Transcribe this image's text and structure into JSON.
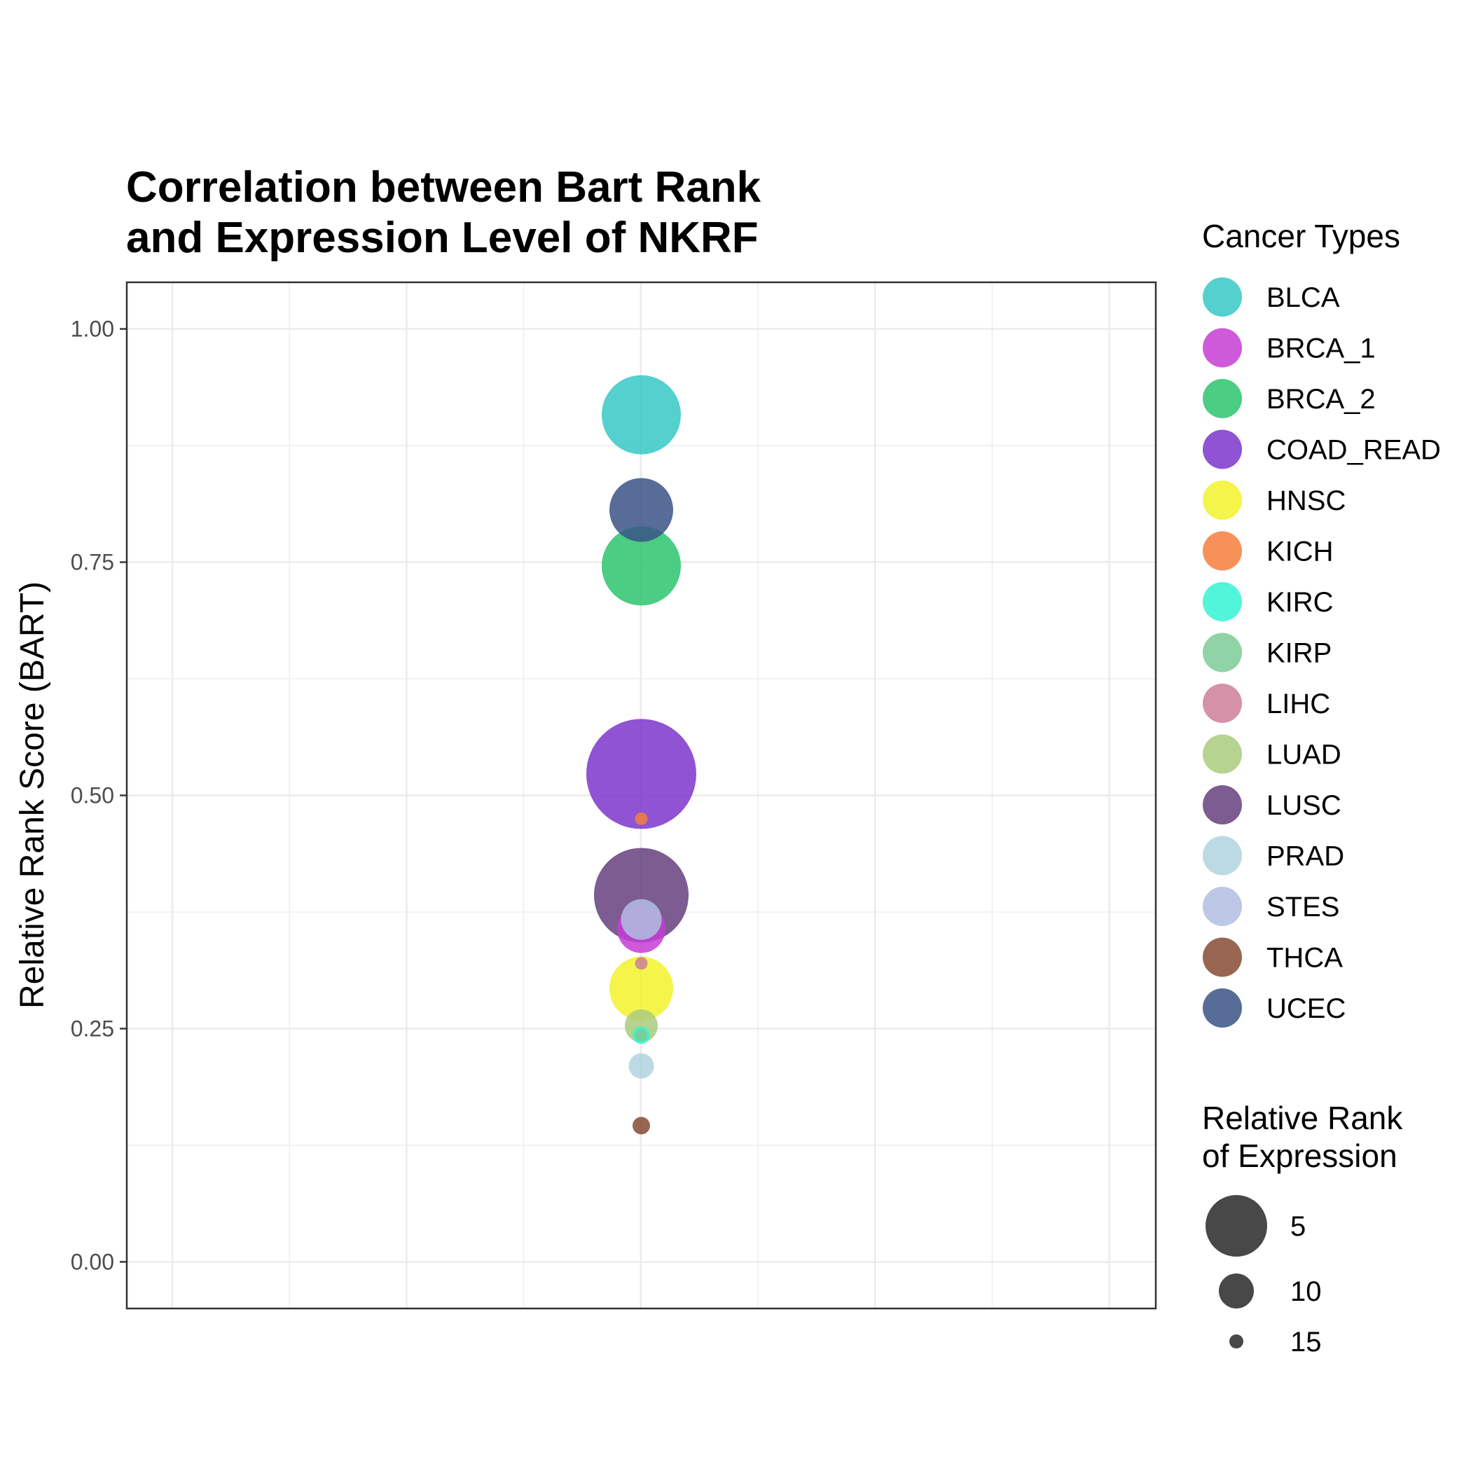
{
  "chart_data": {
    "type": "scatter",
    "title_lines": [
      "Correlation between Bart Rank",
      "and Expression Level of NKRF"
    ],
    "xlabel": "",
    "ylabel": "Relative Rank Score (BART)",
    "ylim": [
      -0.05,
      1.05
    ],
    "y_ticks": [
      0.0,
      0.25,
      0.5,
      0.75,
      1.0
    ],
    "y_tick_labels": [
      "0.00",
      "0.25",
      "0.50",
      "0.75",
      "1.00"
    ],
    "grid": true,
    "legend_placement": "right",
    "color_legend": {
      "title": "Cancer Types",
      "entries": [
        {
          "name": "BLCA",
          "color": "#36C8C6"
        },
        {
          "name": "BRCA_1",
          "color": "#C63DD3"
        },
        {
          "name": "BRCA_2",
          "color": "#2BC46E"
        },
        {
          "name": "COAD_READ",
          "color": "#7B35CC"
        },
        {
          "name": "HNSC",
          "color": "#F2F22C"
        },
        {
          "name": "KICH",
          "color": "#F47F3C"
        },
        {
          "name": "KIRC",
          "color": "#33F5D3"
        },
        {
          "name": "KIRP",
          "color": "#7DCB98"
        },
        {
          "name": "LIHC",
          "color": "#CD7F99"
        },
        {
          "name": "LUAD",
          "color": "#A9CB7C"
        },
        {
          "name": "LUSC",
          "color": "#653F7E"
        },
        {
          "name": "PRAD",
          "color": "#B0D4DE"
        },
        {
          "name": "STES",
          "color": "#B0BEE0"
        },
        {
          "name": "THCA",
          "color": "#874A35"
        },
        {
          "name": "UCEC",
          "color": "#3A5486"
        }
      ]
    },
    "size_legend": {
      "title_lines": [
        "Relative Rank",
        "of Expression"
      ],
      "entries": [
        {
          "label": "5",
          "value": 5
        },
        {
          "label": "10",
          "value": 10
        },
        {
          "label": "15",
          "value": 15
        }
      ]
    },
    "points": [
      {
        "name": "COAD_READ",
        "y": 0.523,
        "size": 1
      },
      {
        "name": "LUSC",
        "y": 0.393,
        "size": 3
      },
      {
        "name": "BLCA",
        "y": 0.908,
        "size": 5
      },
      {
        "name": "BRCA_2",
        "y": 0.746,
        "size": 5
      },
      {
        "name": "UCEC",
        "y": 0.806,
        "size": 7
      },
      {
        "name": "HNSC",
        "y": 0.293,
        "size": 7
      },
      {
        "name": "BRCA_1",
        "y": 0.357,
        "size": 9
      },
      {
        "name": "STES",
        "y": 0.367,
        "size": 10
      },
      {
        "name": "LUAD",
        "y": 0.253,
        "size": 11
      },
      {
        "name": "PRAD",
        "y": 0.21,
        "size": 12
      },
      {
        "name": "KIRC",
        "y": 0.243,
        "size": 13
      },
      {
        "name": "THCA",
        "y": 0.146,
        "size": 13
      },
      {
        "name": "KIRP",
        "y": 0.243,
        "size": 14
      },
      {
        "name": "KICH",
        "y": 0.475,
        "size": 15
      },
      {
        "name": "LIHC",
        "y": 0.32,
        "size": 17
      }
    ]
  }
}
